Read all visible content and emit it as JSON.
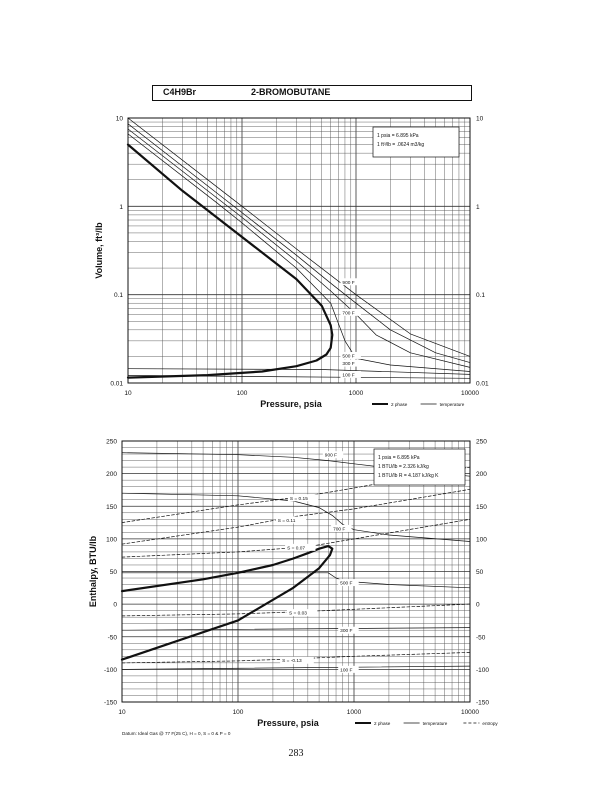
{
  "header": {
    "formula": "C4H9Br",
    "name": "2-BROMOBUTANE"
  },
  "page_number": "283",
  "chart_data": [
    {
      "type": "line",
      "xscale": "log",
      "yscale": "log",
      "xlabel": "Pressure,  psia",
      "ylabel": "Volume, ft^3/lb",
      "xlim": [
        10,
        10000
      ],
      "ylim": [
        0.01,
        10
      ],
      "x_ticks": [
        "10",
        "100",
        "1000",
        "10000"
      ],
      "y_ticks": [
        "0.01",
        "0.1",
        "1",
        "10"
      ],
      "y_ticks_right": [
        "0.01",
        "0.1",
        "1",
        "10"
      ],
      "notes": [
        "1 psia  =  6.895 kPa",
        "1 ft^3/lb  =  .0624 m^3/kg"
      ],
      "legend": [
        {
          "label": "2 phase",
          "style": "thick"
        },
        {
          "label": "temperature",
          "style": "thin"
        }
      ],
      "series": [
        {
          "name": "",
          "style": "thick",
          "x": [
            10,
            30,
            100,
            300,
            500,
            600,
            620,
            600,
            550,
            450,
            300,
            150,
            50,
            10
          ],
          "y": [
            5,
            1.5,
            0.45,
            0.15,
            0.075,
            0.045,
            0.035,
            0.025,
            0.021,
            0.018,
            0.0155,
            0.0135,
            0.0123,
            0.0115
          ]
        },
        {
          "name": "100 F",
          "style": "thin",
          "x": [
            10,
            10000
          ],
          "y": [
            0.0122,
            0.0113
          ]
        },
        {
          "name": "300 F",
          "style": "thin",
          "x": [
            10,
            500,
            1000,
            10000
          ],
          "y": [
            0.0145,
            0.0142,
            0.0138,
            0.0125
          ]
        },
        {
          "name": "500 F",
          "style": "thin",
          "x": [
            10,
            60,
            100,
            300,
            600,
            800,
            1000,
            2000,
            10000
          ],
          "y": [
            6.6,
            1.1,
            0.65,
            0.2,
            0.08,
            0.03,
            0.019,
            0.016,
            0.0135
          ]
        },
        {
          "name": "700 F",
          "style": "thin",
          "x": [
            10,
            100,
            300,
            600,
            1000,
            1500,
            3000,
            10000
          ],
          "y": [
            7.5,
            0.75,
            0.24,
            0.11,
            0.06,
            0.035,
            0.022,
            0.015
          ]
        },
        {
          "name": "900 F",
          "style": "thin",
          "x": [
            10,
            100,
            300,
            600,
            1000,
            2000,
            5000,
            10000
          ],
          "y": [
            8.6,
            0.85,
            0.28,
            0.135,
            0.08,
            0.04,
            0.022,
            0.017
          ]
        },
        {
          "name": "",
          "style": "thin",
          "x": [
            10,
            100,
            300,
            1000,
            3000,
            10000
          ],
          "y": [
            10,
            1.0,
            0.33,
            0.1,
            0.036,
            0.02
          ]
        }
      ],
      "curve_labels": [
        {
          "text": "900 F",
          "x": 760,
          "y": 0.14
        },
        {
          "text": "700 F",
          "x": 760,
          "y": 0.063
        },
        {
          "text": "500 F",
          "x": 760,
          "y": 0.0205
        },
        {
          "text": "300 F",
          "x": 760,
          "y": 0.0168
        },
        {
          "text": "100 F",
          "x": 760,
          "y": 0.0125
        }
      ]
    },
    {
      "type": "line",
      "xscale": "log",
      "yscale": "linear",
      "xlabel": "Pressure,  psia",
      "ylabel": "Enthalpy, BTU/lb",
      "xlim": [
        10,
        10000
      ],
      "ylim": [
        -150,
        250
      ],
      "x_ticks": [
        "10",
        "100",
        "1000",
        "10000"
      ],
      "y_ticks": [
        "-150",
        "-100",
        "-50",
        "0",
        "50",
        "100",
        "150",
        "200",
        "250"
      ],
      "y_ticks_right": [
        "-150",
        "-100",
        "-50",
        "0",
        "50",
        "100",
        "150",
        "200",
        "250"
      ],
      "notes": [
        "1 psia  =  6.895 kPa",
        "1 BTU/lb  =  2.326 kJ/kg",
        "1 BTU/lb R  =  4.187 kJ/kg K"
      ],
      "footnote": "Datum: Ideal Gas @ 77 F(25 C), H = 0, S = 0 & P = 0",
      "legend": [
        {
          "label": "2 phase",
          "style": "thick"
        },
        {
          "label": "temperature",
          "style": "thin"
        },
        {
          "label": "entropy",
          "style": "dashed"
        }
      ],
      "series": [
        {
          "name": "",
          "style": "thick",
          "x": [
            10,
            50,
            100,
            200,
            300,
            400,
            500,
            600,
            650,
            620,
            500,
            300,
            100,
            10
          ],
          "y": [
            20,
            38,
            48,
            60,
            70,
            78,
            85,
            89,
            85,
            75,
            55,
            25,
            -25,
            -85
          ]
        },
        {
          "name": "900 F",
          "style": "thin",
          "x": [
            10,
            100,
            300,
            600,
            1000,
            3000,
            10000
          ],
          "y": [
            232,
            229,
            225,
            220,
            215,
            205,
            196
          ]
        },
        {
          "name": "700 F",
          "style": "thin",
          "x": [
            10,
            100,
            300,
            500,
            650,
            800,
            1000,
            2000,
            10000
          ],
          "y": [
            170,
            166,
            158,
            148,
            136,
            122,
            114,
            106,
            96
          ]
        },
        {
          "name": "500 F",
          "style": "thin",
          "x": [
            10,
            600,
            700,
            800,
            1000,
            2000,
            10000
          ],
          "y": [
            48,
            48,
            40,
            36,
            34,
            30,
            25
          ]
        },
        {
          "name": "300 F",
          "style": "thin",
          "x": [
            10,
            10000
          ],
          "y": [
            -40,
            -36
          ]
        },
        {
          "name": "100 F",
          "style": "thin",
          "x": [
            10,
            10000
          ],
          "y": [
            -100,
            -95
          ]
        },
        {
          "name": "S = 0.15",
          "style": "dashed",
          "x": [
            10,
            100,
            400,
            1000,
            10000
          ],
          "y": [
            125,
            152,
            166,
            178,
            210
          ]
        },
        {
          "name": "S = 0.11",
          "style": "dashed",
          "x": [
            10,
            100,
            300,
            1000,
            10000
          ],
          "y": [
            92,
            118,
            134,
            146,
            176
          ]
        },
        {
          "name": "S = 0.07",
          "style": "dashed",
          "x": [
            10,
            100,
            400,
            1000,
            10000
          ],
          "y": [
            72,
            80,
            88,
            100,
            130
          ]
        },
        {
          "name": "S = 0.03",
          "style": "dashed",
          "x": [
            10,
            100,
            300,
            1000,
            10000
          ],
          "y": [
            -18,
            -15,
            -12,
            -8,
            0
          ]
        },
        {
          "name": "S = -0.13",
          "style": "dashed",
          "x": [
            10,
            100,
            300,
            1000,
            10000
          ],
          "y": [
            -90,
            -87,
            -84,
            -80,
            -74
          ]
        }
      ],
      "curve_labels": [
        {
          "text": "900 F",
          "x": 560,
          "y": 229
        },
        {
          "text": "S = 0.15",
          "x": 280,
          "y": 163
        },
        {
          "text": "S = 0.11",
          "x": 220,
          "y": 129
        },
        {
          "text": "700 F",
          "x": 660,
          "y": 116
        },
        {
          "text": "S = 0.07",
          "x": 265,
          "y": 87
        },
        {
          "text": "500 F",
          "x": 760,
          "y": 33
        },
        {
          "text": "S = 0.03",
          "x": 275,
          "y": -13
        },
        {
          "text": "300 F",
          "x": 760,
          "y": -40
        },
        {
          "text": "S = -0.13",
          "x": 240,
          "y": -86
        },
        {
          "text": "100 F",
          "x": 760,
          "y": -100
        }
      ]
    }
  ]
}
